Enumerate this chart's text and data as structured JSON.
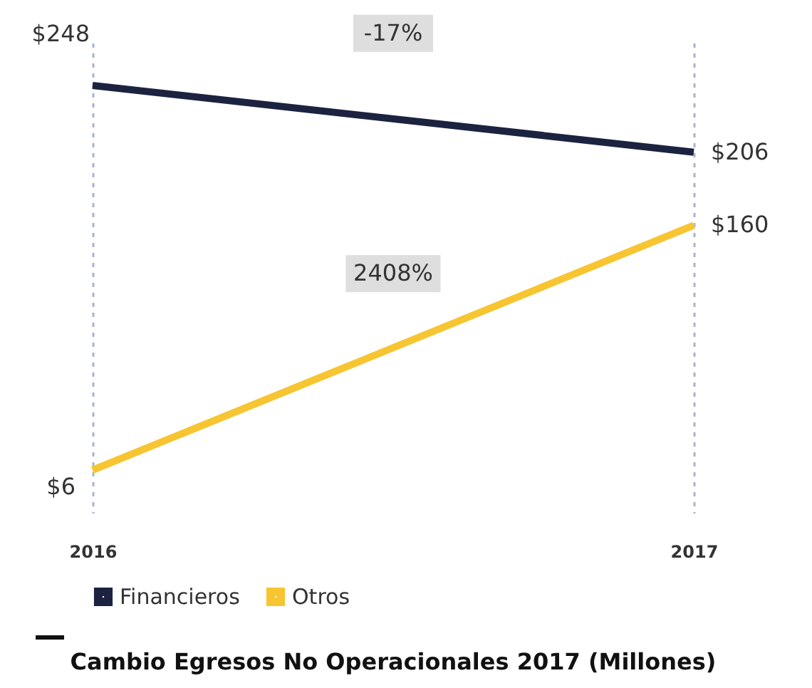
{
  "chart_data": {
    "type": "line",
    "title": "Cambio Egresos No Operacionales 2017 (Millones)",
    "categories": [
      "2016",
      "2017"
    ],
    "series": [
      {
        "name": "Financieros",
        "color": "#1c2340",
        "values": [
          248,
          206
        ],
        "value_labels": [
          "$248",
          "$206"
        ]
      },
      {
        "name": "Otros",
        "color": "#f7c531",
        "values": [
          6,
          160
        ],
        "value_labels": [
          "$6",
          "$160"
        ]
      }
    ],
    "annotations": [
      "-17%",
      "2408%"
    ],
    "grid": "x",
    "legend": "bottom",
    "marker": "none",
    "line_style": "solid"
  }
}
